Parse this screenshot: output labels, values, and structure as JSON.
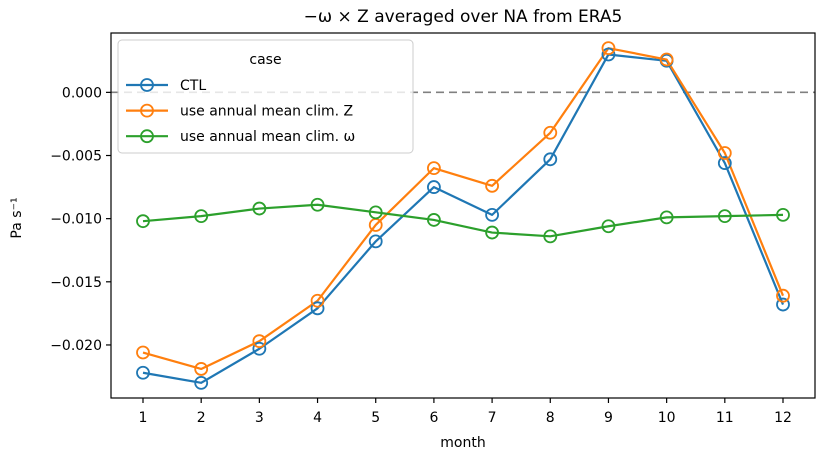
{
  "chart_data": {
    "type": "line",
    "title": "−ω × Z averaged over NA from ERA5",
    "xlabel": "month",
    "ylabel": "Pa s⁻¹",
    "x": [
      1,
      2,
      3,
      4,
      5,
      6,
      7,
      8,
      9,
      10,
      11,
      12
    ],
    "xlim": [
      0.45,
      12.55
    ],
    "ylim": [
      -0.0242,
      0.0047
    ],
    "grid": false,
    "xticks": {
      "values": [
        1,
        2,
        3,
        4,
        5,
        6,
        7,
        8,
        9,
        10,
        11,
        12
      ],
      "labels": [
        "1",
        "2",
        "3",
        "4",
        "5",
        "6",
        "7",
        "8",
        "9",
        "10",
        "11",
        "12"
      ]
    },
    "yticks": {
      "values": [
        0.0,
        -0.005,
        -0.01,
        -0.015,
        -0.02
      ],
      "labels": [
        "0.000",
        "−0.005",
        "−0.010",
        "−0.015",
        "−0.020"
      ]
    },
    "zero_line": {
      "y": 0.0,
      "style": "dashed",
      "color": "#808080"
    },
    "legend": {
      "title": "case",
      "position": "upper-left"
    },
    "series": [
      {
        "name": "CTL",
        "color": "#1f77b4",
        "marker": "circle-open",
        "values": [
          -0.0222,
          -0.023,
          -0.0203,
          -0.0171,
          -0.0118,
          -0.0075,
          -0.0097,
          -0.0053,
          0.003,
          0.0025,
          -0.0056,
          -0.0168
        ]
      },
      {
        "name": "use annual mean clim. Z",
        "color": "#ff7f0e",
        "marker": "circle-open",
        "values": [
          -0.0206,
          -0.0219,
          -0.0197,
          -0.0165,
          -0.0105,
          -0.006,
          -0.0074,
          -0.0032,
          0.0035,
          0.0026,
          -0.0048,
          -0.0161
        ]
      },
      {
        "name": "use annual mean clim. ω",
        "color": "#2ca02c",
        "marker": "circle-open",
        "values": [
          -0.0102,
          -0.0098,
          -0.0092,
          -0.0089,
          -0.0095,
          -0.0101,
          -0.0111,
          -0.0114,
          -0.0106,
          -0.0099,
          -0.0098,
          -0.0097
        ]
      }
    ],
    "axes_color": "#000000",
    "text_color": "#000000"
  }
}
